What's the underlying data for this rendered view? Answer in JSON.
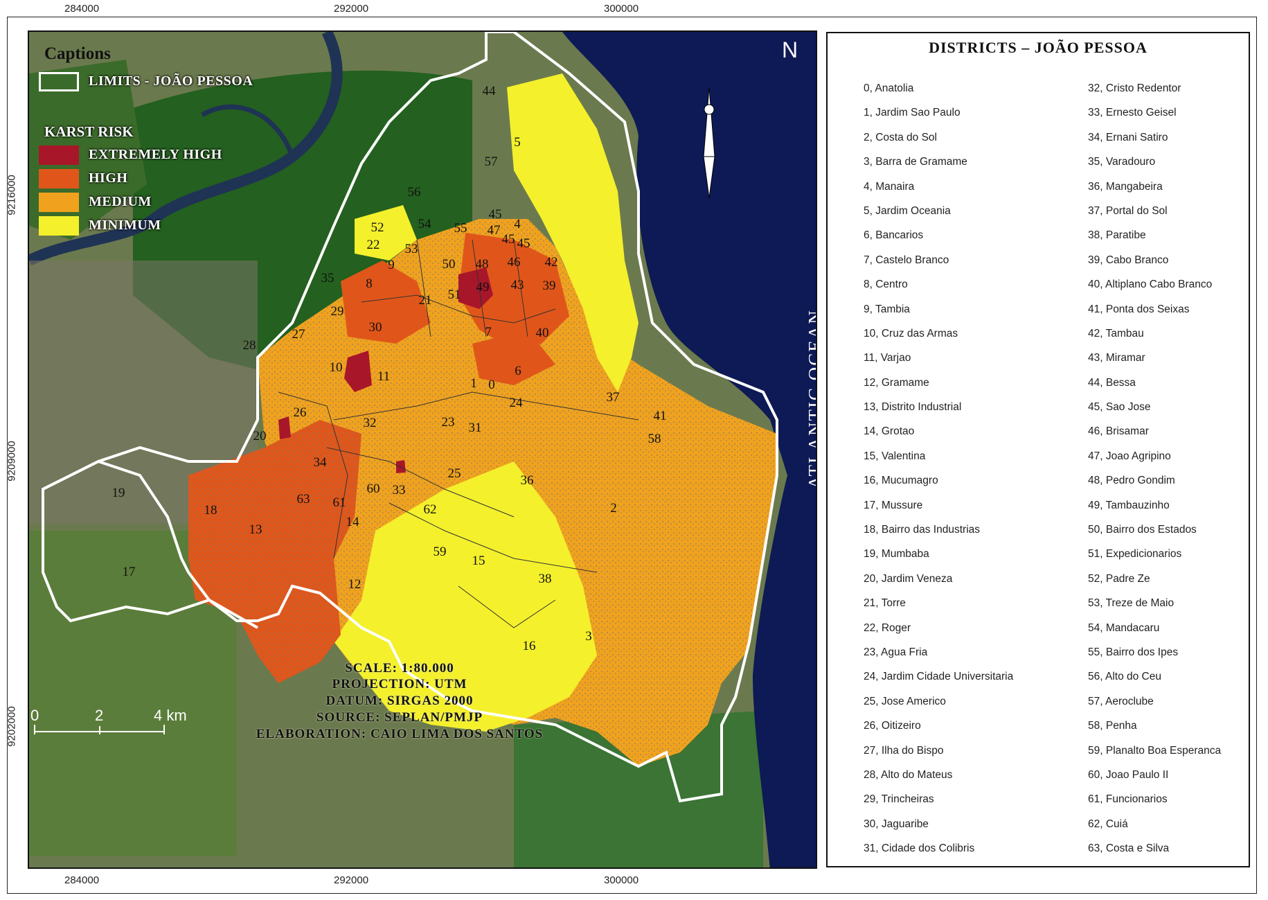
{
  "axis": {
    "x_ticks": [
      "284000",
      "292000",
      "300000"
    ],
    "y_ticks": [
      "9216000",
      "9209000",
      "9202000"
    ]
  },
  "legend": {
    "title": "Captions",
    "limits_label": "LIMITS - JOÃO PESSOA",
    "karst_title": "KARST RISK",
    "classes": [
      {
        "label": "EXTREMELY HIGH",
        "color": "#a8162a"
      },
      {
        "label": "HIGH",
        "color": "#e0561a"
      },
      {
        "label": "MEDIUM",
        "color": "#f0a21e"
      },
      {
        "label": "MINIMUM",
        "color": "#f4f02c"
      }
    ]
  },
  "north_label": "N",
  "ocean_label": "ATLANTIC OCEAN",
  "map_info": {
    "scale": "SCALE: 1:80.000",
    "projection": "PROJECTION: UTM",
    "datum": "DATUM: SIRGAS 2000",
    "source": "SOURCE: SEPLAN/PMJP",
    "elaboration": "ELABORATION: CAIO LIMA DOS SANTOS"
  },
  "scale_bar": {
    "labels": [
      "0",
      "2",
      "4 km"
    ]
  },
  "district_labels": [
    "44",
    "5",
    "57",
    "56",
    "52",
    "54",
    "55",
    "45",
    "47",
    "4",
    "45",
    "45",
    "22",
    "53",
    "9",
    "50",
    "48",
    "46",
    "42",
    "35",
    "8",
    "21",
    "51",
    "49",
    "43",
    "39",
    "29",
    "30",
    "7",
    "40",
    "27",
    "28",
    "10",
    "11",
    "1",
    "0",
    "6",
    "24",
    "37",
    "26",
    "20",
    "32",
    "23",
    "31",
    "41",
    "58",
    "34",
    "25",
    "36",
    "19",
    "60",
    "33",
    "61",
    "63",
    "62",
    "18",
    "2",
    "14",
    "13",
    "59",
    "15",
    "38",
    "17",
    "12",
    "16",
    "3"
  ],
  "panel": {
    "title": "DISTRICTS – JOÃO PESSOA",
    "left_column": [
      "0, Anatolia",
      "1, Jardim Sao Paulo",
      "2, Costa do Sol",
      "3, Barra de Gramame",
      "4, Manaira",
      "5, Jardim Oceania",
      "6, Bancarios",
      "7, Castelo Branco",
      "8, Centro",
      "9, Tambia",
      "10, Cruz das Armas",
      "11, Varjao",
      "12, Gramame",
      "13, Distrito Industrial",
      "14, Grotao",
      "15, Valentina",
      "16, Mucumagro",
      "17, Mussure",
      "18, Bairro das Industrias",
      "19, Mumbaba",
      "20, Jardim Veneza",
      "21, Torre",
      "22, Roger",
      "23, Agua Fria",
      "24, Jardim Cidade Universitaria",
      "25, Jose Americo",
      "26, Oitizeiro",
      "27, Ilha do Bispo",
      "28, Alto do Mateus",
      "29, Trincheiras",
      "30, Jaguaribe",
      "31, Cidade dos Colibris"
    ],
    "right_column": [
      "32, Cristo Redentor",
      "33, Ernesto Geisel",
      "34, Ernani Satiro",
      "35, Varadouro",
      "36, Mangabeira",
      "37, Portal do Sol",
      "38, Paratibe",
      "39, Cabo Branco",
      "40, Altiplano Cabo Branco",
      "41, Ponta dos Seixas",
      "42, Tambau",
      "43, Miramar",
      "44, Bessa",
      "45, Sao Jose",
      "46, Brisamar",
      "47, Joao Agripino",
      "48, Pedro Gondim",
      "49, Tambauzinho",
      "50, Bairro dos Estados",
      "51, Expedicionarios",
      "52, Padre Ze",
      "53, Treze de Maio",
      "54, Mandacaru",
      "55, Bairro dos Ipes",
      "56, Alto do Ceu",
      "57, Aeroclube",
      "58, Penha",
      "59, Planalto Boa Esperanca",
      "60, Joao Paulo II",
      "61, Funcionarios",
      "62, Cuiá",
      "63, Costa e Silva"
    ]
  }
}
